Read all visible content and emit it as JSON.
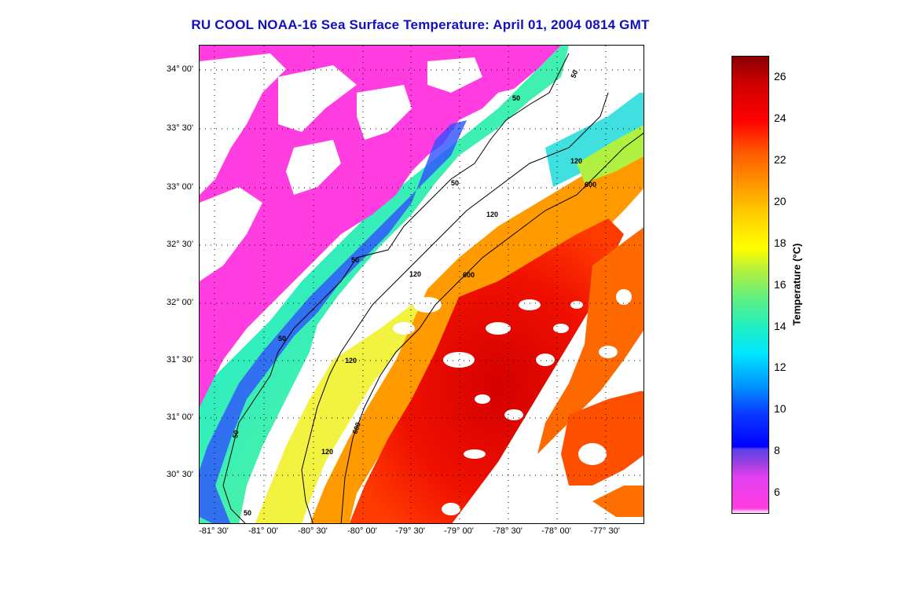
{
  "title": "RU COOL  NOAA-16  Sea Surface Temperature:  April 01, 2004 0814 GMT",
  "map": {
    "lat_labels": [
      "34° 00'",
      "33° 30'",
      "33° 00'",
      "32° 30'",
      "32° 00'",
      "31° 30'",
      "31° 00'",
      "30° 30'"
    ],
    "lon_labels": [
      "-81° 30'",
      "-81° 00'",
      "-80° 30'",
      "-80° 00'",
      "-79° 30'",
      "-79° 00'",
      "-78° 30'",
      "-78° 00'",
      "-77° 30'"
    ],
    "contour_labels": [
      "50",
      "50",
      "50",
      "50",
      "50",
      "50",
      "50",
      "120",
      "120",
      "120",
      "120",
      "120",
      "600",
      "600",
      "600"
    ]
  },
  "colorbar": {
    "label": "Temperature (°C)",
    "ticks": [
      "26",
      "24",
      "22",
      "20",
      "18",
      "16",
      "14",
      "12",
      "10",
      "8",
      "6"
    ]
  },
  "colors": {
    "title": "#1010c8",
    "land": "#ff3de0",
    "warm": "#e00000",
    "cool": "#00e6ff"
  }
}
